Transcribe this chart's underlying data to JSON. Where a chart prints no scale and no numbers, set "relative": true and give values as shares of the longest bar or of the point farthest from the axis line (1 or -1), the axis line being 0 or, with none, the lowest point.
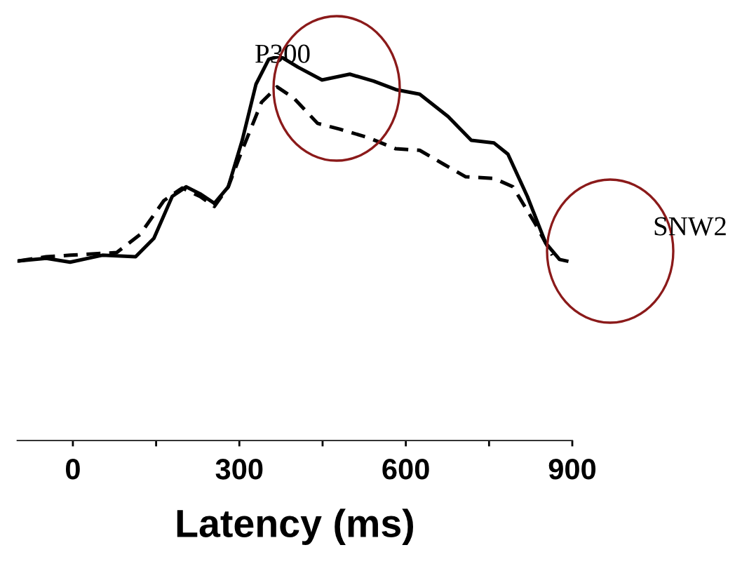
{
  "chart_data": {
    "type": "line",
    "relative": true,
    "xlabel": "Latency (ms)",
    "xlim": [
      -100,
      900
    ],
    "xticks": [
      0,
      {
        "value": 150,
        "label": null
      },
      300,
      {
        "value": 450,
        "label": null
      },
      600,
      {
        "value": 750,
        "label": null
      },
      900
    ],
    "tick_labels": "x",
    "grid": false,
    "legend": false,
    "marker": "none",
    "annotations": [
      {
        "text": "P300",
        "x": 378,
        "y": 1.0
      },
      "SNW2"
    ],
    "series": [
      {
        "color": "#000000",
        "line_style": "solid",
        "x": [
          -98,
          -48,
          -5,
          53,
          113,
          146,
          179,
          204,
          229,
          255,
          280,
          305,
          330,
          353,
          373,
          406,
          449,
          499,
          542,
          582,
          625,
          676,
          718,
          759,
          784,
          819,
          852,
          877,
          890
        ],
        "values": [
          0.467,
          0.474,
          0.464,
          0.482,
          0.478,
          0.526,
          0.635,
          0.66,
          0.642,
          0.617,
          0.66,
          0.78,
          0.927,
          0.992,
          1.0,
          0.971,
          0.938,
          0.953,
          0.935,
          0.913,
          0.901,
          0.843,
          0.781,
          0.774,
          0.745,
          0.635,
          0.514,
          0.471,
          0.467
        ]
      },
      {
        "color": "#000000",
        "line_style": "dashed",
        "x": [
          -98,
          -48,
          -5,
          79,
          121,
          164,
          197,
          229,
          255,
          280,
          305,
          340,
          368,
          398,
          441,
          481,
          532,
          582,
          625,
          668,
          708,
          759,
          793,
          834,
          864
        ],
        "values": [
          0.467,
          0.478,
          0.482,
          0.489,
          0.536,
          0.624,
          0.657,
          0.635,
          0.609,
          0.66,
          0.755,
          0.88,
          0.92,
          0.891,
          0.825,
          0.81,
          0.788,
          0.759,
          0.755,
          0.719,
          0.686,
          0.682,
          0.66,
          0.562,
          0.482
        ]
      }
    ]
  }
}
